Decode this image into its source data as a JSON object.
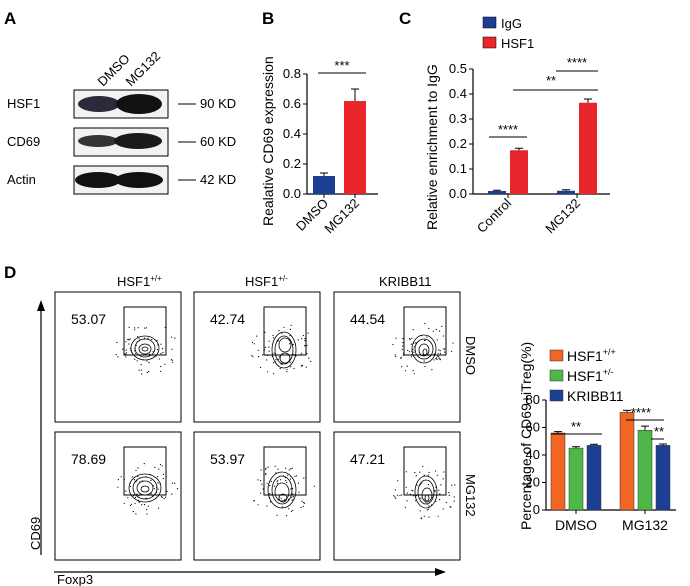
{
  "panels": {
    "a": {
      "letter": "A",
      "lanes": [
        "DMSO",
        "MG132"
      ],
      "rows": [
        {
          "protein": "HSF1",
          "marker": "90 KD"
        },
        {
          "protein": "CD69",
          "marker": "60 KD"
        },
        {
          "protein": "Actin",
          "marker": "42 KD"
        }
      ]
    },
    "b": {
      "letter": "B",
      "sig": "***"
    },
    "c": {
      "letter": "C",
      "sig": [
        "****",
        "**",
        "****"
      ]
    },
    "d": {
      "letter": "D",
      "col_headers": [
        {
          "base": "HSF1",
          "sup": "+/+"
        },
        {
          "base": "HSF1",
          "sup": "+/-"
        },
        {
          "base": "KRIBB11",
          "sup": ""
        }
      ],
      "row_labels": [
        "DMSO",
        "MG132"
      ],
      "gate_values": [
        [
          "53.07",
          "42.74",
          "44.54"
        ],
        [
          "78.69",
          "53.97",
          "47.21"
        ]
      ],
      "y_axis": "CD69",
      "x_axis": "Foxp3",
      "bar_sig": {
        "dmso": "**",
        "mg_a": "****",
        "mg_b": "**"
      }
    }
  },
  "colors": {
    "blue": "#1c3f94",
    "red": "#e8262c",
    "orange": "#f26522",
    "green": "#4db848",
    "navy": "#1c3f94"
  },
  "chart_data": [
    {
      "type": "bar",
      "categories": [
        "DMSO",
        "MG132"
      ],
      "values": [
        0.12,
        0.62
      ],
      "errors": [
        0.02,
        0.08
      ],
      "xlabel": "",
      "ylabel": "Realative CD69 expression",
      "ylim": [
        0,
        0.8
      ],
      "yticks": [
        "0.0",
        "0.2",
        "0.4",
        "0.6",
        "0.8"
      ]
    },
    {
      "type": "bar",
      "categories": [
        "Control",
        "MG132"
      ],
      "series": [
        {
          "name": "IgG",
          "values": [
            0.012,
            0.013
          ],
          "errors": [
            0.003,
            0.004
          ]
        },
        {
          "name": "HSF1",
          "values": [
            0.175,
            0.365
          ],
          "errors": [
            0.008,
            0.015
          ]
        }
      ],
      "xlabel": "",
      "ylabel": "Relative enrichment to IgG",
      "ylim": [
        0,
        0.5
      ],
      "yticks": [
        "0.0",
        "0.1",
        "0.2",
        "0.3",
        "0.4",
        "0.5"
      ],
      "legend": "top-left"
    },
    {
      "type": "bar",
      "categories": [
        "DMSO",
        "MG132"
      ],
      "series": [
        {
          "name": "HSF1+/+",
          "values": [
            56,
            71
          ],
          "errors": [
            1,
            1.5
          ]
        },
        {
          "name": "HSF1+/-",
          "values": [
            45,
            58
          ],
          "errors": [
            1,
            3
          ]
        },
        {
          "name": "KRIBB11",
          "values": [
            47,
            47
          ],
          "errors": [
            0.8,
            1
          ]
        }
      ],
      "xlabel": "",
      "ylabel": "Percentage of CD69+iTreg(%)",
      "ylim": [
        0,
        80
      ],
      "yticks": [
        "0",
        "20",
        "40",
        "60",
        "80"
      ],
      "legend": "top"
    }
  ]
}
